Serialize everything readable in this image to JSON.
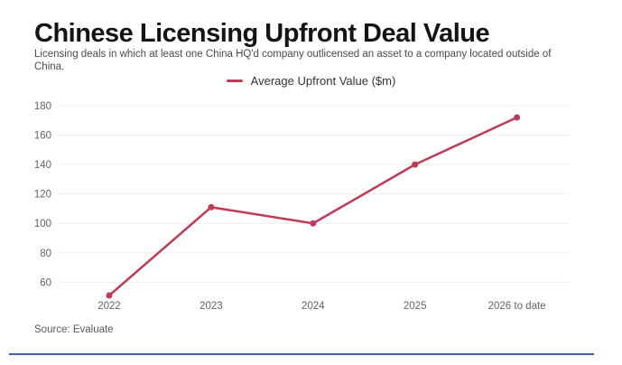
{
  "title": "Chinese Licensing Upfront Deal Value",
  "subtitle": "Licensing deals in which at least one China HQ'd company outlicensed an asset to a company located outside of China.",
  "legend": {
    "label": "Average Upfront Value ($m)"
  },
  "source": "Source: Evaluate",
  "colors": {
    "line": "#C13A55",
    "marker": "#C13A55",
    "divider": "#3A5FAD",
    "grid": "#EDEDED",
    "axis_text": "#5F6368",
    "title": "#141414",
    "subtitle": "#4A4A4A"
  },
  "chart_data": {
    "type": "line",
    "title": "Chinese Licensing Upfront Deal Value",
    "categories": [
      "2022",
      "2023",
      "2024",
      "2025",
      "2026 to date"
    ],
    "series": [
      {
        "name": "Average Upfront Value ($m)",
        "values": [
          51,
          111,
          100,
          140,
          172
        ]
      }
    ],
    "xlabel": "",
    "ylabel": "",
    "ylim": [
      50,
      185
    ],
    "yticks": [
      60,
      80,
      100,
      120,
      140,
      160,
      180
    ],
    "grid": true,
    "legend_position": "top-center"
  }
}
